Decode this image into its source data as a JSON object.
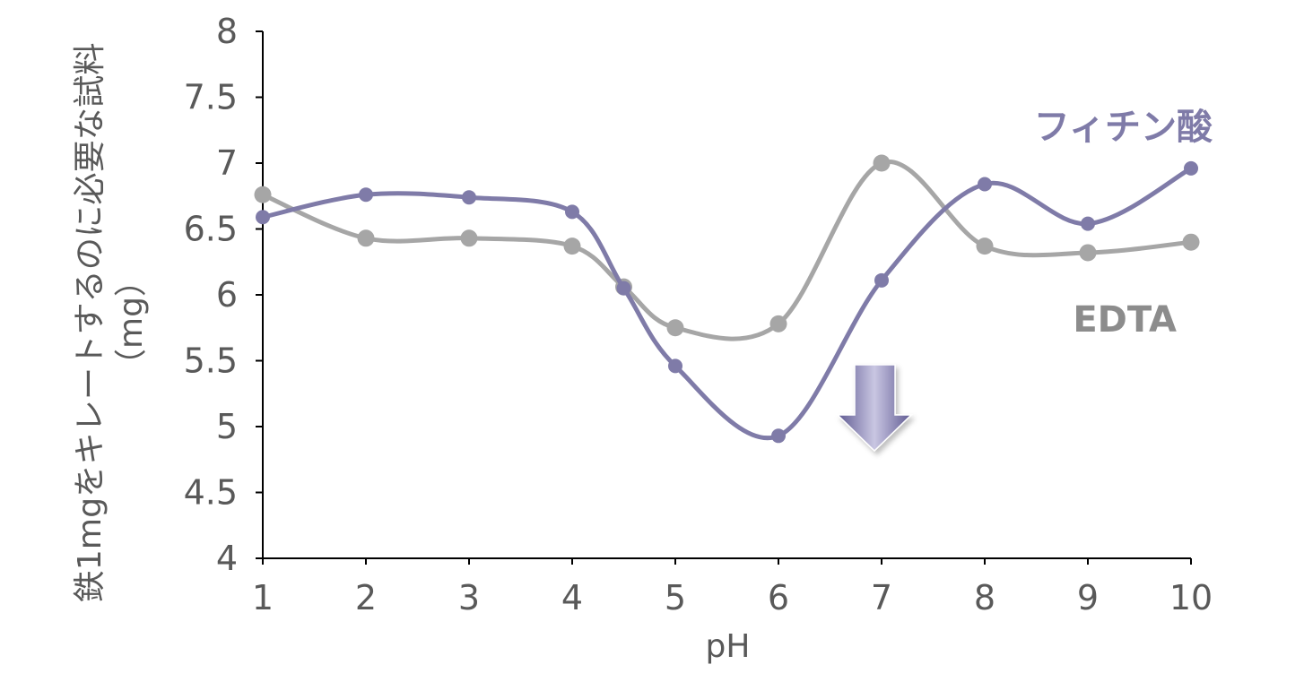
{
  "chart_data": {
    "type": "line",
    "title": "",
    "xlabel": "pH",
    "ylabel_line1": "鉄1mgをキレートするのに必要な試料",
    "ylabel_line2": "（mg）",
    "x": [
      1,
      2,
      3,
      4,
      4.5,
      5,
      6,
      7,
      8,
      9,
      10
    ],
    "x_ticks": [
      "1",
      "2",
      "3",
      "4",
      "5",
      "6",
      "7",
      "8",
      "9",
      "10"
    ],
    "x_tick_values": [
      1,
      2,
      3,
      4,
      5,
      6,
      7,
      8,
      9,
      10
    ],
    "xlim": [
      1,
      10
    ],
    "y_ticks": [
      "4",
      "4.5",
      "5",
      "5.5",
      "6",
      "6.5",
      "7",
      "7.5",
      "8"
    ],
    "y_tick_values": [
      4,
      4.5,
      5,
      5.5,
      6,
      6.5,
      7,
      7.5,
      8
    ],
    "ylim": [
      4,
      8
    ],
    "grid": false,
    "legend": "direct labels",
    "smooth": true,
    "series": [
      {
        "name": "フィチン酸",
        "color": "#7f7ba8",
        "points": [
          [
            1,
            6.59
          ],
          [
            2,
            6.76
          ],
          [
            3,
            6.74
          ],
          [
            4,
            6.63
          ],
          [
            4.5,
            6.05
          ],
          [
            5,
            5.46
          ],
          [
            6,
            4.93
          ],
          [
            7,
            6.11
          ],
          [
            8,
            6.84
          ],
          [
            9,
            6.54
          ],
          [
            10,
            6.96
          ]
        ]
      },
      {
        "name": "EDTA",
        "color": "#a6a6a6",
        "points": [
          [
            1,
            6.76
          ],
          [
            2,
            6.43
          ],
          [
            3,
            6.43
          ],
          [
            4,
            6.37
          ],
          [
            4.5,
            6.06
          ],
          [
            5,
            5.75
          ],
          [
            6,
            5.78
          ],
          [
            7,
            7.0
          ],
          [
            8,
            6.37
          ],
          [
            9,
            6.32
          ],
          [
            10,
            6.4
          ]
        ]
      }
    ],
    "annotation": {
      "type": "down-arrow",
      "icon": "down-arrow-icon",
      "color": "#8a87b5"
    }
  }
}
